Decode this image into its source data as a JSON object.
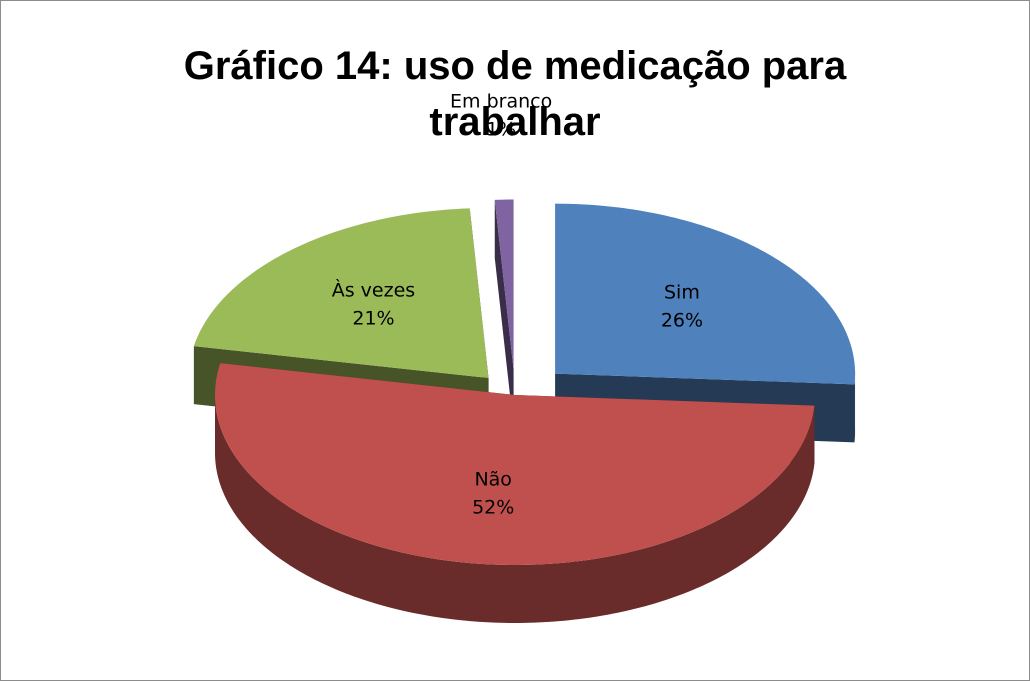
{
  "chart_data": {
    "type": "pie",
    "title": "Gráfico 14: uso de medicação para trabalhar",
    "categories": [
      "Sim",
      "Não",
      "Às vezes",
      "Em branco"
    ],
    "values": [
      26,
      52,
      21,
      1
    ],
    "value_labels": [
      "26%",
      "52%",
      "21%",
      "1%"
    ],
    "colors": [
      "#4f81bd",
      "#c0504d",
      "#9bbb59",
      "#8064a2"
    ]
  }
}
